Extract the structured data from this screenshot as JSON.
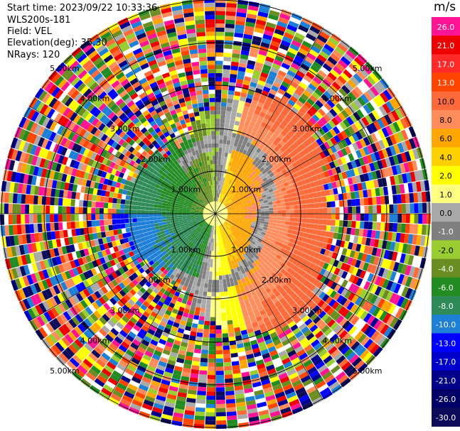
{
  "header": {
    "start_time": "Start time: 2023/09/22 10:33:36",
    "instrument": "WLS200s-181",
    "field": "Field: VEL",
    "elevation": "Elevation(deg): 35.30",
    "nrays": "NRays: 120"
  },
  "colorbar": {
    "unit": "m/s",
    "labels": [
      "26.0",
      "21.0",
      "17.0",
      "13.0",
      "10.0",
      "8.0",
      "6.0",
      "4.0",
      "2.0",
      "1.0",
      "0.0",
      "-1.0",
      "-2.0",
      "-4.0",
      "-6.0",
      "-8.0",
      "-10.0",
      "-13.0",
      "-17.0",
      "-21.0",
      "-26.0",
      "-30.0"
    ],
    "colors": [
      "#ff1493",
      "#ee0000",
      "#ff2a2a",
      "#ff4500",
      "#ff6a3a",
      "#ff8c5a",
      "#ffa500",
      "#ffd000",
      "#ffff00",
      "#ffff80",
      "#a9a9a9",
      "#7f7f7f",
      "#9acd32",
      "#6b8e23",
      "#228b22",
      "#2e8b57",
      "#1e7fd6",
      "#0000ff",
      "#0000cd",
      "#00008b",
      "#000066",
      "#0b0b5a"
    ]
  },
  "chart_data": {
    "type": "ppi",
    "field": "VEL",
    "units": "m/s",
    "nrays": 120,
    "elevation_deg": 35.3,
    "range_rings": [
      {
        "label": "1.00km"
      },
      {
        "label": "2.00km"
      },
      {
        "label": "3.00km"
      },
      {
        "label": "4.00km"
      },
      {
        "label": "5.00km"
      }
    ],
    "value_range": [
      -30.0,
      26.0
    ]
  }
}
